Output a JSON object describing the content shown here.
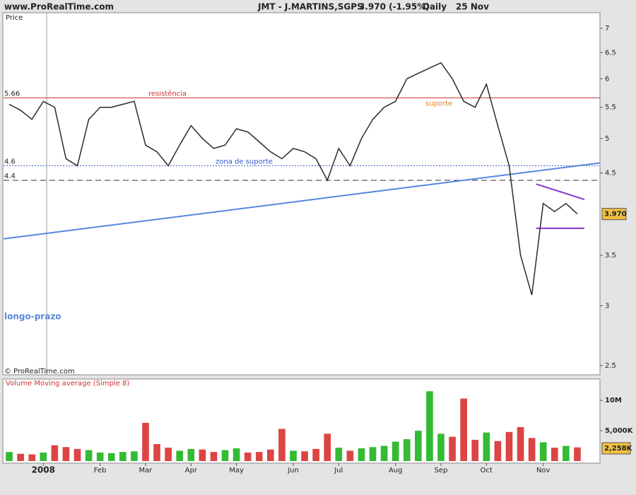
{
  "header": {
    "site": "www.ProRealTime.com",
    "instrument": "JMT - J.MARTINS,SGPS",
    "quote": "3.970 (-1.95%)",
    "period": "Daily",
    "date": "25 Nov"
  },
  "chart_data": [
    {
      "type": "line",
      "title": "Price",
      "credit": "© ProRealTime.com",
      "log_scale": true,
      "categories": [
        null,
        null,
        null,
        "2008",
        null,
        null,
        null,
        null,
        "Feb",
        null,
        null,
        null,
        "Mar",
        null,
        null,
        null,
        "Apr",
        null,
        null,
        null,
        "May",
        null,
        null,
        null,
        null,
        "Jun",
        null,
        null,
        null,
        "Jul",
        null,
        null,
        null,
        null,
        "Aug",
        null,
        null,
        null,
        "Sep",
        null,
        null,
        null,
        "Oct",
        null,
        null,
        null,
        null,
        "Nov",
        null,
        null,
        null
      ],
      "series": [
        {
          "name": "JMT",
          "color": "#2a2a2a",
          "values": [
            5.55,
            5.45,
            5.3,
            5.6,
            5.5,
            4.7,
            4.6,
            5.3,
            5.5,
            5.5,
            5.55,
            5.6,
            4.9,
            4.8,
            4.6,
            4.9,
            5.2,
            5.0,
            4.85,
            4.9,
            5.15,
            5.1,
            4.95,
            4.8,
            4.7,
            4.85,
            4.8,
            4.7,
            4.4,
            4.85,
            4.6,
            5.0,
            5.3,
            5.5,
            5.6,
            6.0,
            6.1,
            6.2,
            6.3,
            6.0,
            5.6,
            5.5,
            5.9,
            5.2,
            4.6,
            3.5,
            3.1,
            4.1,
            4.0,
            4.1,
            3.97
          ]
        }
      ],
      "last_label": "3.970",
      "ylim": [
        2.43,
        7.34
      ],
      "yticks": [
        2.5,
        3,
        3.5,
        4.5,
        5,
        5.5,
        6,
        6.5,
        7
      ],
      "levels": [
        {
          "value": 5.66,
          "text": "resistência",
          "text2": "suporte",
          "color": "#cc3333",
          "dash": "none"
        },
        {
          "value": 4.6,
          "text": "zona de suporte",
          "color": "#3355cc",
          "dash": "2,2"
        },
        {
          "value": 4.4,
          "color": "#333333",
          "dash": "8,5"
        }
      ],
      "trendline": {
        "text": "longo-prazo",
        "values": [
          3.68,
          4.64
        ],
        "color": "#5588dd"
      },
      "triangle": {
        "upper": [
          4.35,
          4.15
        ],
        "lower": [
          3.8,
          3.8
        ],
        "color": "#8833cc"
      }
    },
    {
      "type": "bar",
      "title": "Volume Moving average (Simple 8)",
      "up_color": "#33bb33",
      "down_color": "#dd4444",
      "values": [
        1500000,
        1200000,
        1100000,
        1400000,
        2600000,
        2300000,
        2000000,
        1800000,
        1400000,
        1300000,
        1500000,
        1600000,
        6300000,
        2800000,
        2200000,
        1700000,
        2000000,
        1900000,
        1500000,
        1800000,
        2100000,
        1400000,
        1500000,
        1900000,
        5300000,
        1700000,
        1600000,
        2000000,
        4500000,
        2200000,
        1700000,
        2100000,
        2300000,
        2500000,
        3200000,
        3600000,
        5000000,
        11500000,
        4500000,
        4000000,
        10300000,
        3500000,
        4700000,
        3300000,
        4800000,
        5600000,
        3800000,
        3100000,
        2200000,
        2500000,
        2258000
      ],
      "value_labels": [
        null,
        null,
        null,
        null,
        null,
        null,
        null,
        null,
        null,
        null,
        null,
        null,
        null,
        null,
        null,
        null,
        null,
        null,
        null,
        null,
        null,
        null,
        null,
        null,
        null,
        null,
        null,
        null,
        null,
        null,
        null,
        null,
        null,
        null,
        null,
        null,
        null,
        null,
        null,
        null,
        null,
        null,
        null,
        null,
        null,
        null,
        null,
        null,
        null,
        null,
        "2,258K"
      ],
      "ylim": [
        0,
        13400000
      ],
      "yticks": [
        {
          "value": 5000000,
          "label": "5,000K"
        },
        {
          "value": 10000000,
          "label": "10M"
        }
      ]
    }
  ]
}
